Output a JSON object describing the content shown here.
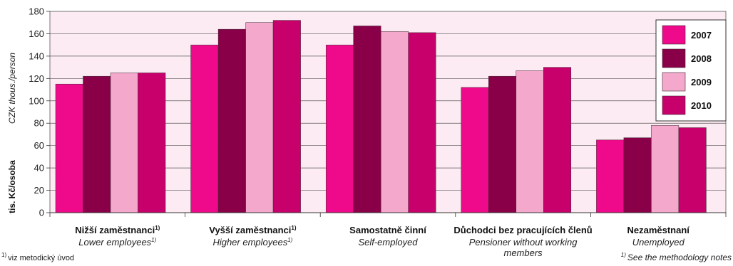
{
  "colors": {
    "plot_background": "#fcebf2",
    "series": [
      "#ee0a8a",
      "#8a0048",
      "#f3a8cc",
      "#c8006c"
    ]
  },
  "chart_data": {
    "type": "bar",
    "ylabel_cz": "tis. Kč/osoba",
    "ylabel_en": "CZK thous./person",
    "ylim": [
      0,
      180
    ],
    "yticks": [
      "0",
      "20",
      "40",
      "60",
      "80",
      "100",
      "120",
      "140",
      "160",
      "180"
    ],
    "grid": true,
    "legend_position": "top-right",
    "categories": [
      {
        "cz": "Nižší zaměstnanci",
        "cz_sup": "1)",
        "en": [
          "Lower employees"
        ],
        "en_sup": "1)"
      },
      {
        "cz": "Vyšší zaměstnanci",
        "cz_sup": "1)",
        "en": [
          "Higher employees"
        ],
        "en_sup": "1)"
      },
      {
        "cz": "Samostatně činní",
        "cz_sup": "",
        "en": [
          "Self-employed"
        ],
        "en_sup": ""
      },
      {
        "cz": "Důchodci bez pracujících členů",
        "cz_sup": "",
        "en": [
          "Pensioner without working",
          "members"
        ],
        "en_sup": ""
      },
      {
        "cz": "Nezaměstnaní",
        "cz_sup": "",
        "en": [
          "Unemployed"
        ],
        "en_sup": ""
      }
    ],
    "series": [
      {
        "name": "2007",
        "values": [
          115,
          150,
          150,
          112,
          65
        ]
      },
      {
        "name": "2008",
        "values": [
          122,
          164,
          167,
          122,
          67
        ]
      },
      {
        "name": "2009",
        "values": [
          125,
          170,
          162,
          127,
          78
        ]
      },
      {
        "name": "2010",
        "values": [
          125,
          172,
          161,
          130,
          76
        ]
      }
    ]
  },
  "footnotes": {
    "left_sup": "1)",
    "left": "viz metodický úvod",
    "right_sup": "1)",
    "right": "See the methodology notes"
  }
}
